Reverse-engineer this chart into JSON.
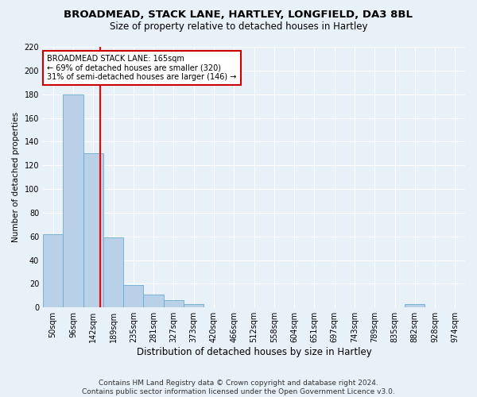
{
  "title": "BROADMEAD, STACK LANE, HARTLEY, LONGFIELD, DA3 8BL",
  "subtitle": "Size of property relative to detached houses in Hartley",
  "xlabel": "Distribution of detached houses by size in Hartley",
  "ylabel": "Number of detached properties",
  "footnote": "Contains HM Land Registry data © Crown copyright and database right 2024.\nContains public sector information licensed under the Open Government Licence v3.0.",
  "bar_labels": [
    "50sqm",
    "96sqm",
    "142sqm",
    "189sqm",
    "235sqm",
    "281sqm",
    "327sqm",
    "373sqm",
    "420sqm",
    "466sqm",
    "512sqm",
    "558sqm",
    "604sqm",
    "651sqm",
    "697sqm",
    "743sqm",
    "789sqm",
    "835sqm",
    "882sqm",
    "928sqm",
    "974sqm"
  ],
  "bar_values": [
    62,
    180,
    130,
    59,
    19,
    11,
    6,
    3,
    0,
    0,
    0,
    0,
    0,
    0,
    0,
    0,
    0,
    0,
    3,
    0,
    0
  ],
  "bar_color": "#b8d0e8",
  "bar_edge_color": "#6aaad4",
  "background_color": "#e8f0f8",
  "grid_color": "#ffffff",
  "red_line_x": 2.35,
  "annotation_text": "BROADMEAD STACK LANE: 165sqm\n← 69% of detached houses are smaller (320)\n31% of semi-detached houses are larger (146) →",
  "annotation_box_color": "#ffffff",
  "annotation_box_edge": "#cc0000",
  "ylim": [
    0,
    220
  ],
  "yticks": [
    0,
    20,
    40,
    60,
    80,
    100,
    120,
    140,
    160,
    180,
    200,
    220
  ],
  "title_fontsize": 9.5,
  "subtitle_fontsize": 8.5,
  "xlabel_fontsize": 8.5,
  "ylabel_fontsize": 7.5,
  "tick_fontsize": 7,
  "footnote_fontsize": 6.5
}
